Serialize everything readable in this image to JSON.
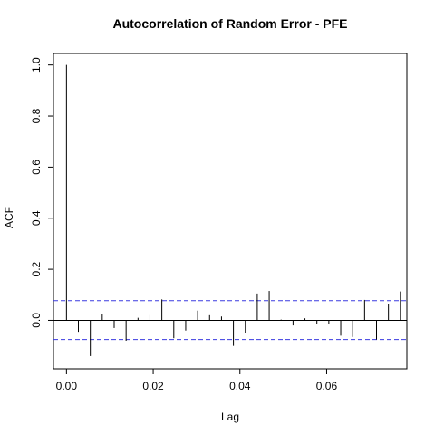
{
  "chart_data": {
    "type": "bar",
    "title": "Autocorrelation of Random Error - PFE",
    "xlabel": "Lag",
    "ylabel": "ACF",
    "xlim": [
      -0.003,
      0.0785
    ],
    "ylim": [
      -0.19,
      1.045
    ],
    "x_ticks": [
      0.0,
      0.02,
      0.04,
      0.06
    ],
    "x_tick_labels": [
      "0.00",
      "0.02",
      "0.04",
      "0.06"
    ],
    "y_ticks": [
      0.0,
      0.2,
      0.4,
      0.6,
      0.8,
      1.0
    ],
    "y_tick_labels": [
      "0.0",
      "0.2",
      "0.4",
      "0.6",
      "0.8",
      "1.0"
    ],
    "confidence_bounds": [
      0.077,
      -0.075
    ],
    "confidence_color": "#3a3ae0",
    "bar_color": "#000000",
    "grid": false,
    "legend": "none",
    "lags": [
      0.0,
      0.00275,
      0.0055,
      0.00825,
      0.011,
      0.01375,
      0.0165,
      0.01925,
      0.022,
      0.02475,
      0.0275,
      0.03025,
      0.033,
      0.03575,
      0.0385,
      0.04125,
      0.044,
      0.04675,
      0.0495,
      0.05225,
      0.055,
      0.05775,
      0.0605,
      0.06325,
      0.066,
      0.06875,
      0.0715,
      0.07425,
      0.077
    ],
    "values": [
      1.0,
      -0.045,
      -0.14,
      0.025,
      -0.03,
      -0.08,
      0.01,
      0.022,
      0.082,
      -0.07,
      -0.04,
      0.038,
      0.02,
      0.015,
      -0.1,
      -0.05,
      0.105,
      0.115,
      0.003,
      -0.02,
      0.008,
      -0.015,
      -0.015,
      -0.06,
      -0.065,
      0.08,
      -0.075,
      0.065,
      0.113
    ]
  }
}
